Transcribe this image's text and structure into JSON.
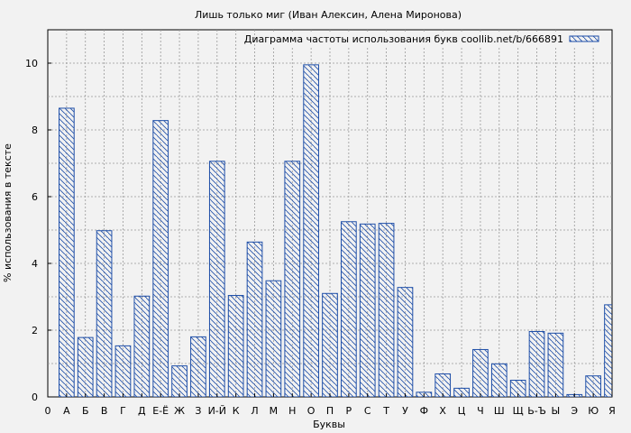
{
  "chart_data": {
    "type": "bar",
    "title": "Лишь только миг (Иван Алексин, Алена Миронова)",
    "xlabel": "Буквы",
    "ylabel": "% использования в тексте",
    "legend": {
      "label": "Диаграмма частоты использования букв coollib.net/b/666891",
      "placement": "top-right"
    },
    "x_tick_labels": [
      "0",
      "А",
      "Б",
      "В",
      "Г",
      "Д",
      "Е-Ё",
      "Ж",
      "З",
      "И-Й",
      "К",
      "Л",
      "М",
      "Н",
      "О",
      "П",
      "Р",
      "С",
      "Т",
      "У",
      "Ф",
      "Х",
      "Ц",
      "Ч",
      "Ш",
      "Щ",
      "Ь-Ъ",
      "Ы",
      "Э",
      "Ю",
      "Я"
    ],
    "categories": [
      "А",
      "Б",
      "В",
      "Г",
      "Д",
      "Е-Ё",
      "Ж",
      "З",
      "И-Й",
      "К",
      "Л",
      "М",
      "Н",
      "О",
      "П",
      "Р",
      "С",
      "Т",
      "У",
      "Ф",
      "Х",
      "Ц",
      "Ч",
      "Ш",
      "Щ",
      "Ь-Ъ",
      "Ы",
      "Э",
      "Ю",
      "Я"
    ],
    "values": [
      8.65,
      1.78,
      4.98,
      1.53,
      3.02,
      8.28,
      0.93,
      1.8,
      7.06,
      3.04,
      4.64,
      3.48,
      7.06,
      9.95,
      3.1,
      5.25,
      5.18,
      5.2,
      3.28,
      0.14,
      0.69,
      0.26,
      1.42,
      0.99,
      0.5,
      1.96,
      1.91,
      0.07,
      0.63,
      2.76
    ],
    "ylim": [
      0,
      11
    ],
    "y_ticks": [
      "0",
      "2",
      "4",
      "6",
      "8",
      "10"
    ],
    "grid": true,
    "colors": {
      "bar_stroke": "#1f4fa8",
      "hatch": "#1f4fa8",
      "background": "#f2f2f2",
      "plot_bg": "#f2f2f2",
      "grid": "#999999"
    }
  }
}
